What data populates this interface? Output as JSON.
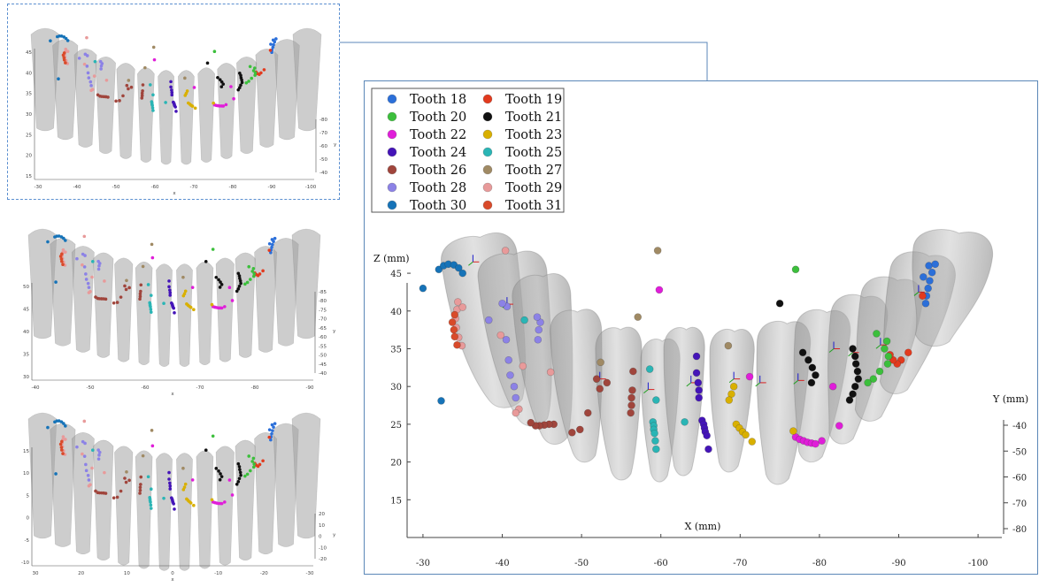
{
  "chart_data": [
    {
      "view": "main",
      "type": "scatter",
      "title": "",
      "xlabel": "X (mm)",
      "ylabel_left": "Z (mm)",
      "ylabel_right": "Y (mm)",
      "x_ticks": [
        -30,
        -40,
        -50,
        -60,
        -70,
        -80,
        -90,
        -100
      ],
      "z_ticks": [
        15,
        20,
        25,
        30,
        35,
        40,
        45
      ],
      "y_ticks": [
        -80,
        -70,
        -60,
        -50,
        -40
      ],
      "xlim": [
        -28,
        -103
      ],
      "zlim": [
        10,
        47
      ],
      "legend_position": "top-left",
      "series": [
        {
          "name": "Tooth 18",
          "color": "#2b6fd9",
          "points": [
            [
              -94.2,
              45.1
            ],
            [
              -93.9,
              44.0
            ],
            [
              -93.7,
              43.0
            ],
            [
              -93.5,
              42.0
            ],
            [
              -93.4,
              41.0
            ],
            [
              -93.8,
              46.0
            ],
            [
              -94.6,
              46.2
            ],
            [
              -93.1,
              44.5
            ]
          ]
        },
        {
          "name": "Tooth 19",
          "color": "#e23a1e",
          "points": [
            [
              -93.0,
              42.0
            ],
            [
              -91.2,
              34.5
            ],
            [
              -90.3,
              33.5
            ],
            [
              -89.8,
              33.0
            ],
            [
              -89.3,
              33.5
            ],
            [
              -88.9,
              34.2
            ]
          ]
        },
        {
          "name": "Tooth 20",
          "color": "#3cbf3c",
          "points": [
            [
              -77.0,
              45.5
            ],
            [
              -87.2,
              37.0
            ],
            [
              -88.5,
              36.0
            ],
            [
              -88.2,
              35.0
            ],
            [
              -88.7,
              34.0
            ],
            [
              -88.6,
              33.0
            ],
            [
              -87.6,
              32.0
            ],
            [
              -86.8,
              31.0
            ],
            [
              -86.1,
              30.5
            ]
          ]
        },
        {
          "name": "Tooth 21",
          "color": "#111111",
          "points": [
            [
              -75.0,
              41.0
            ],
            [
              -77.9,
              34.5
            ],
            [
              -78.6,
              33.5
            ],
            [
              -79.1,
              32.5
            ],
            [
              -79.5,
              31.5
            ],
            [
              -79.0,
              30.5
            ],
            [
              -84.2,
              35.0
            ],
            [
              -84.5,
              34.0
            ],
            [
              -84.6,
              33.0
            ],
            [
              -84.8,
              32.0
            ],
            [
              -84.9,
              31.0
            ],
            [
              -84.5,
              30.0
            ],
            [
              -84.2,
              29.0
            ],
            [
              -83.8,
              28.2
            ]
          ]
        },
        {
          "name": "Tooth 22",
          "color": "#e01ed9",
          "points": [
            [
              -59.8,
              42.8
            ],
            [
              -71.2,
              31.3
            ],
            [
              -77.0,
              23.3
            ],
            [
              -77.5,
              23.0
            ],
            [
              -78.0,
              22.8
            ],
            [
              -78.5,
              22.6
            ],
            [
              -79.0,
              22.5
            ],
            [
              -79.5,
              22.4
            ],
            [
              -80.3,
              22.8
            ],
            [
              -82.5,
              24.8
            ],
            [
              -81.7,
              30.0
            ]
          ]
        },
        {
          "name": "Tooth 23",
          "color": "#d9b000",
          "points": [
            [
              -69.2,
              30.0
            ],
            [
              -68.9,
              29.0
            ],
            [
              -68.6,
              28.2
            ],
            [
              -69.5,
              25.0
            ],
            [
              -69.9,
              24.5
            ],
            [
              -70.3,
              24.0
            ],
            [
              -70.7,
              23.6
            ],
            [
              -71.5,
              22.7
            ],
            [
              -76.7,
              24.1
            ]
          ]
        },
        {
          "name": "Tooth 24",
          "color": "#4414b8",
          "points": [
            [
              -64.5,
              34.0
            ],
            [
              -64.5,
              31.8
            ],
            [
              -64.7,
              30.5
            ],
            [
              -64.8,
              29.5
            ],
            [
              -64.8,
              28.5
            ],
            [
              -65.2,
              25.5
            ],
            [
              -65.4,
              25.0
            ],
            [
              -65.5,
              24.5
            ],
            [
              -65.6,
              24.0
            ],
            [
              -65.8,
              23.5
            ],
            [
              -66.0,
              21.7
            ]
          ]
        },
        {
          "name": "Tooth 25",
          "color": "#2ab5b5",
          "points": [
            [
              -42.8,
              38.8
            ],
            [
              -58.6,
              32.3
            ],
            [
              -59.4,
              28.2
            ],
            [
              -59.0,
              25.3
            ],
            [
              -59.1,
              24.8
            ],
            [
              -59.1,
              24.3
            ],
            [
              -59.2,
              23.8
            ],
            [
              -59.3,
              22.8
            ],
            [
              -59.4,
              21.7
            ],
            [
              -63.0,
              25.3
            ]
          ]
        },
        {
          "name": "Tooth 26",
          "color": "#a0453c",
          "points": [
            [
              -56.5,
              32.0
            ],
            [
              -56.4,
              29.5
            ],
            [
              -56.3,
              28.5
            ],
            [
              -56.3,
              27.5
            ],
            [
              -56.2,
              26.5
            ],
            [
              -50.8,
              26.5
            ],
            [
              -49.8,
              24.3
            ],
            [
              -48.8,
              23.9
            ],
            [
              -46.5,
              25.0
            ],
            [
              -45.9,
              25.0
            ],
            [
              -45.3,
              24.9
            ],
            [
              -44.7,
              24.8
            ],
            [
              -44.2,
              24.8
            ],
            [
              -43.6,
              25.2
            ],
            [
              -53.2,
              30.5
            ],
            [
              -52.3,
              29.7
            ],
            [
              -51.9,
              31.0
            ]
          ]
        },
        {
          "name": "Tooth 27",
          "color": "#a08a64",
          "points": [
            [
              -59.6,
              48.0
            ],
            [
              -57.1,
              39.2
            ],
            [
              -68.5,
              35.4
            ],
            [
              -52.4,
              33.2
            ]
          ]
        },
        {
          "name": "Tooth 28",
          "color": "#8c82e6",
          "points": [
            [
              -38.3,
              38.8
            ],
            [
              -40.6,
              40.6
            ],
            [
              -40.5,
              36.2
            ],
            [
              -40.8,
              33.5
            ],
            [
              -41.0,
              31.5
            ],
            [
              -41.5,
              30.0
            ],
            [
              -41.7,
              28.5
            ],
            [
              -44.5,
              36.2
            ],
            [
              -44.6,
              37.5
            ],
            [
              -44.8,
              38.5
            ],
            [
              -44.4,
              39.2
            ],
            [
              -40.0,
              41.0
            ]
          ]
        },
        {
          "name": "Tooth 29",
          "color": "#e89a9a",
          "points": [
            [
              -40.4,
              48.0
            ],
            [
              -34.4,
              41.2
            ],
            [
              -34.3,
              40.2
            ],
            [
              -34.1,
              39.0
            ],
            [
              -34.2,
              37.8
            ],
            [
              -34.5,
              36.5
            ],
            [
              -34.9,
              35.4
            ],
            [
              -35.0,
              40.5
            ],
            [
              -39.8,
              36.8
            ],
            [
              -42.6,
              32.7
            ],
            [
              -46.1,
              31.9
            ],
            [
              -42.1,
              27.0
            ],
            [
              -41.7,
              26.5
            ]
          ]
        },
        {
          "name": "Tooth 30",
          "color": "#1673b8",
          "points": [
            [
              -30.0,
              43.0
            ],
            [
              -32.3,
              28.1
            ],
            [
              -32.0,
              45.5
            ],
            [
              -32.6,
              46.0
            ],
            [
              -33.2,
              46.2
            ],
            [
              -33.9,
              46.1
            ],
            [
              -34.5,
              45.7
            ],
            [
              -35.0,
              45.0
            ]
          ]
        },
        {
          "name": "Tooth 31",
          "color": "#d94a2a",
          "points": [
            [
              -34.0,
              39.5
            ],
            [
              -33.7,
              38.5
            ],
            [
              -33.9,
              37.5
            ],
            [
              -34.0,
              36.6
            ],
            [
              -34.3,
              35.5
            ]
          ]
        }
      ]
    },
    {
      "view": "thumbnail-top",
      "type": "scatter",
      "left_ticks": [
        "45",
        "40",
        "35",
        "30",
        "25",
        "20",
        "15"
      ],
      "bottom_ticks": [
        "-30",
        "-40",
        "-50",
        "-60",
        "-70",
        "-80",
        "-90",
        "-100"
      ],
      "right_ticks": [
        "-80",
        "-70",
        "-60",
        "-50",
        "-40"
      ],
      "right_label": "y",
      "bottom_label": "x"
    },
    {
      "view": "thumbnail-middle",
      "type": "scatter",
      "left_ticks": [
        "50",
        "45",
        "40",
        "35",
        "30"
      ],
      "bottom_ticks": [
        "-40",
        "-50",
        "-60",
        "-70",
        "-80",
        "-90"
      ],
      "right_ticks": [
        "-85",
        "-80",
        "-75",
        "-70",
        "-65",
        "-60",
        "-55",
        "-50",
        "-45",
        "-40"
      ],
      "right_label": "y",
      "bottom_label": "x"
    },
    {
      "view": "thumbnail-bottom",
      "type": "scatter",
      "left_ticks": [
        "15",
        "10",
        "5",
        "0",
        "-5",
        "-10"
      ],
      "bottom_ticks": [
        "30",
        "20",
        "10",
        "0",
        "-10",
        "-20",
        "-30"
      ],
      "right_ticks": [
        "20",
        "10",
        "0",
        "-10",
        "-20"
      ],
      "right_label": "y",
      "bottom_label": "x"
    }
  ]
}
